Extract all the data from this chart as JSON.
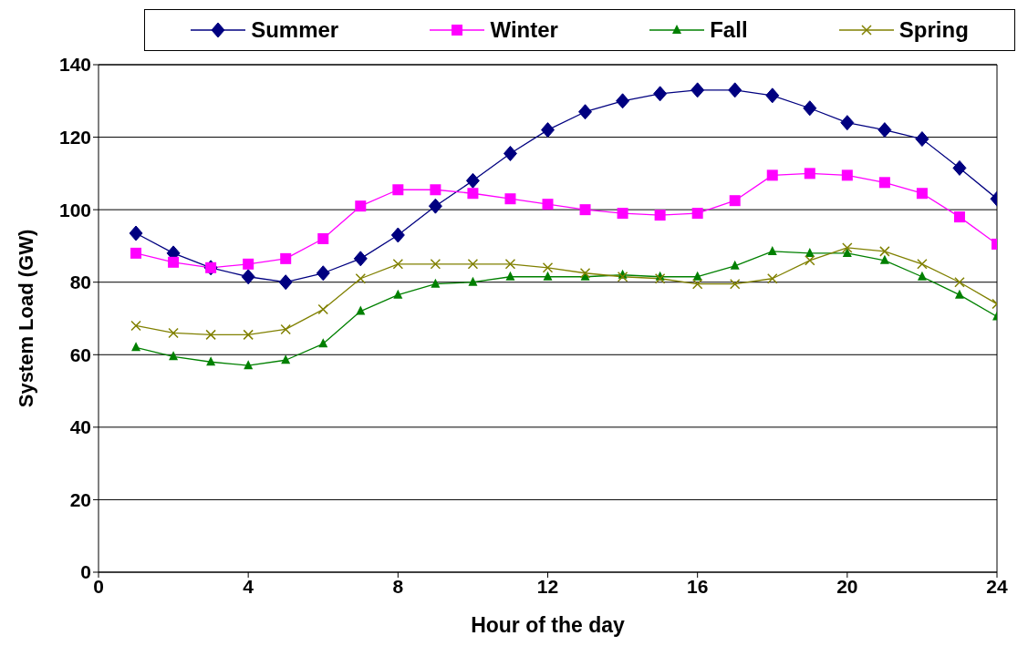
{
  "chart_data": {
    "type": "line",
    "xlabel": "Hour of the day",
    "ylabel": "System Load (GW)",
    "x": [
      1,
      2,
      3,
      4,
      5,
      6,
      7,
      8,
      9,
      10,
      11,
      12,
      13,
      14,
      15,
      16,
      17,
      18,
      19,
      20,
      21,
      22,
      23,
      24
    ],
    "series": [
      {
        "name": "Summer",
        "color": "#000080",
        "marker": "diamond",
        "values": [
          93.5,
          88,
          84,
          81.5,
          80,
          82.5,
          86.5,
          93,
          101,
          108,
          115.5,
          122,
          127,
          130,
          132,
          133,
          133,
          131.5,
          128,
          124,
          122,
          119.5,
          111.5,
          103
        ]
      },
      {
        "name": "Winter",
        "color": "#ff00ff",
        "marker": "square",
        "values": [
          88,
          85.5,
          84,
          85,
          86.5,
          92,
          101,
          105.5,
          105.5,
          104.5,
          103,
          101.5,
          100,
          99,
          98.5,
          99,
          102.5,
          109.5,
          110,
          109.5,
          107.5,
          104.5,
          98,
          90.5
        ]
      },
      {
        "name": "Fall",
        "color": "#008000",
        "marker": "triangle",
        "values": [
          62,
          59.5,
          58,
          57,
          58.5,
          63,
          72,
          76.5,
          79.5,
          80,
          81.5,
          81.5,
          81.5,
          82,
          81.5,
          81.5,
          84.5,
          88.5,
          88,
          88,
          86,
          81.5,
          76.5,
          70.5
        ]
      },
      {
        "name": "Spring",
        "color": "#808000",
        "marker": "cross",
        "values": [
          68,
          66,
          65.5,
          65.5,
          67,
          72.5,
          81,
          85,
          85,
          85,
          85,
          84,
          82.5,
          81.5,
          81,
          79.5,
          79.5,
          81,
          86,
          89.5,
          88.5,
          85,
          80,
          74
        ]
      }
    ],
    "xlim": [
      0,
      24
    ],
    "xticks": [
      0,
      4,
      8,
      12,
      16,
      20,
      24
    ],
    "ylim": [
      0,
      140
    ],
    "yticks": [
      0,
      20,
      40,
      60,
      80,
      100,
      120,
      140
    ],
    "grid": "y",
    "legend": "top",
    "line_style": "solid"
  }
}
